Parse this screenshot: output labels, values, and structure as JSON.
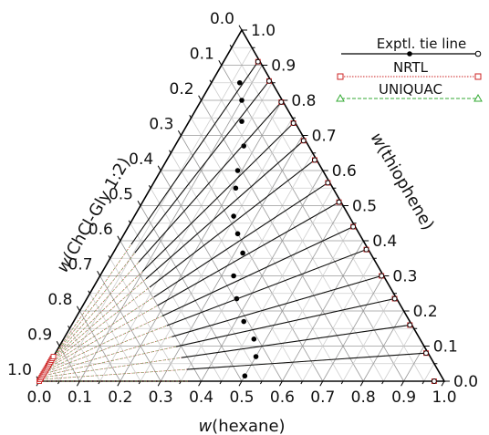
{
  "chart_data": {
    "type": "ternary",
    "axes": {
      "bottom": {
        "label_prefix": "w",
        "label_suffix": "(hexane)"
      },
      "right": {
        "label_prefix": "w",
        "label_suffix": "(thiophene)"
      },
      "left": {
        "label_prefix": "w",
        "label_suffix": "(ChCl-Gly 1:2)"
      }
    },
    "bottom_ticks": [
      "0.0",
      "0.1",
      "0.2",
      "0.3",
      "0.4",
      "0.5",
      "0.6",
      "0.7",
      "0.8",
      "0.9",
      "1.0"
    ],
    "right_ticks": [
      "0.0",
      "0.1",
      "0.2",
      "0.3",
      "0.4",
      "0.5",
      "0.6",
      "0.7",
      "0.8",
      "0.9",
      "1.0"
    ],
    "left_ticks": [
      "1.0",
      "0.9",
      "0.8",
      "0.7",
      "0.6",
      "0.5",
      "0.4",
      "0.3",
      "0.2",
      "0.1",
      "0.0"
    ],
    "grid": true,
    "legend": {
      "placement": "top-right",
      "entries": [
        {
          "name": "Exptl. tie line",
          "color": "#000000",
          "marker": "circle"
        },
        {
          "name": "NRTL",
          "color": "#cc2222",
          "marker": "square"
        },
        {
          "name": "UNIQUAC",
          "color": "#33aa33",
          "marker": "triangle"
        }
      ]
    },
    "tie_lines": [
      {
        "hexane_rich": {
          "hexane": 0.975,
          "thiophene": 0.0
        },
        "glycerol_rich": {
          "hexane": 0.0,
          "thiophene": 0.0
        },
        "midpoint": {
          "hexane": 0.5,
          "thiophene": 0.015
        }
      },
      {
        "hexane_rich": {
          "hexane": 0.915,
          "thiophene": 0.08
        },
        "glycerol_rich": {
          "hexane": 0.0,
          "thiophene": 0.005
        },
        "midpoint": {
          "hexane": 0.5,
          "thiophene": 0.07
        }
      },
      {
        "hexane_rich": {
          "hexane": 0.835,
          "thiophene": 0.16
        },
        "glycerol_rich": {
          "hexane": 0.0,
          "thiophene": 0.01
        },
        "midpoint": {
          "hexane": 0.47,
          "thiophene": 0.12
        }
      },
      {
        "hexane_rich": {
          "hexane": 0.76,
          "thiophene": 0.235
        },
        "glycerol_rich": {
          "hexane": 0.0,
          "thiophene": 0.015
        },
        "midpoint": {
          "hexane": 0.42,
          "thiophene": 0.17
        }
      },
      {
        "hexane_rich": {
          "hexane": 0.695,
          "thiophene": 0.3
        },
        "glycerol_rich": {
          "hexane": 0.0,
          "thiophene": 0.02
        },
        "midpoint": {
          "hexane": 0.37,
          "thiophene": 0.235
        }
      },
      {
        "hexane_rich": {
          "hexane": 0.62,
          "thiophene": 0.375
        },
        "glycerol_rich": {
          "hexane": 0.0,
          "thiophene": 0.025
        },
        "midpoint": {
          "hexane": 0.33,
          "thiophene": 0.3
        }
      },
      {
        "hexane_rich": {
          "hexane": 0.555,
          "thiophene": 0.44
        },
        "glycerol_rich": {
          "hexane": 0.0,
          "thiophene": 0.03
        },
        "midpoint": {
          "hexane": 0.32,
          "thiophene": 0.365
        }
      },
      {
        "hexane_rich": {
          "hexane": 0.485,
          "thiophene": 0.51
        },
        "glycerol_rich": {
          "hexane": 0.0,
          "thiophene": 0.035
        },
        "midpoint": {
          "hexane": 0.28,
          "thiophene": 0.42
        }
      },
      {
        "hexane_rich": {
          "hexane": 0.43,
          "thiophene": 0.565
        },
        "glycerol_rich": {
          "hexane": 0.0,
          "thiophene": 0.04
        },
        "midpoint": {
          "hexane": 0.245,
          "thiophene": 0.47
        }
      },
      {
        "hexane_rich": {
          "hexane": 0.365,
          "thiophene": 0.63
        },
        "glycerol_rich": {
          "hexane": 0.0,
          "thiophene": 0.045
        },
        "midpoint": {
          "hexane": 0.21,
          "thiophene": 0.55
        }
      },
      {
        "hexane_rich": {
          "hexane": 0.31,
          "thiophene": 0.685
        },
        "glycerol_rich": {
          "hexane": 0.0,
          "thiophene": 0.05
        },
        "midpoint": {
          "hexane": 0.19,
          "thiophene": 0.6
        }
      },
      {
        "hexane_rich": {
          "hexane": 0.26,
          "thiophene": 0.735
        },
        "glycerol_rich": {
          "hexane": 0.0,
          "thiophene": 0.055
        },
        "midpoint": {
          "hexane": 0.17,
          "thiophene": 0.67
        }
      },
      {
        "hexane_rich": {
          "hexane": 0.2,
          "thiophene": 0.795
        },
        "glycerol_rich": {
          "hexane": 0.0,
          "thiophene": 0.06
        },
        "midpoint": {
          "hexane": 0.13,
          "thiophene": 0.74
        }
      },
      {
        "hexane_rich": {
          "hexane": 0.14,
          "thiophene": 0.855
        },
        "glycerol_rich": {
          "hexane": 0.0,
          "thiophene": 0.065
        },
        "midpoint": {
          "hexane": 0.1,
          "thiophene": 0.8
        }
      },
      {
        "hexane_rich": {
          "hexane": 0.085,
          "thiophene": 0.91
        },
        "glycerol_rich": {
          "hexane": 0.0,
          "thiophene": 0.07
        },
        "midpoint": {
          "hexane": 0.07,
          "thiophene": 0.85
        }
      }
    ]
  }
}
